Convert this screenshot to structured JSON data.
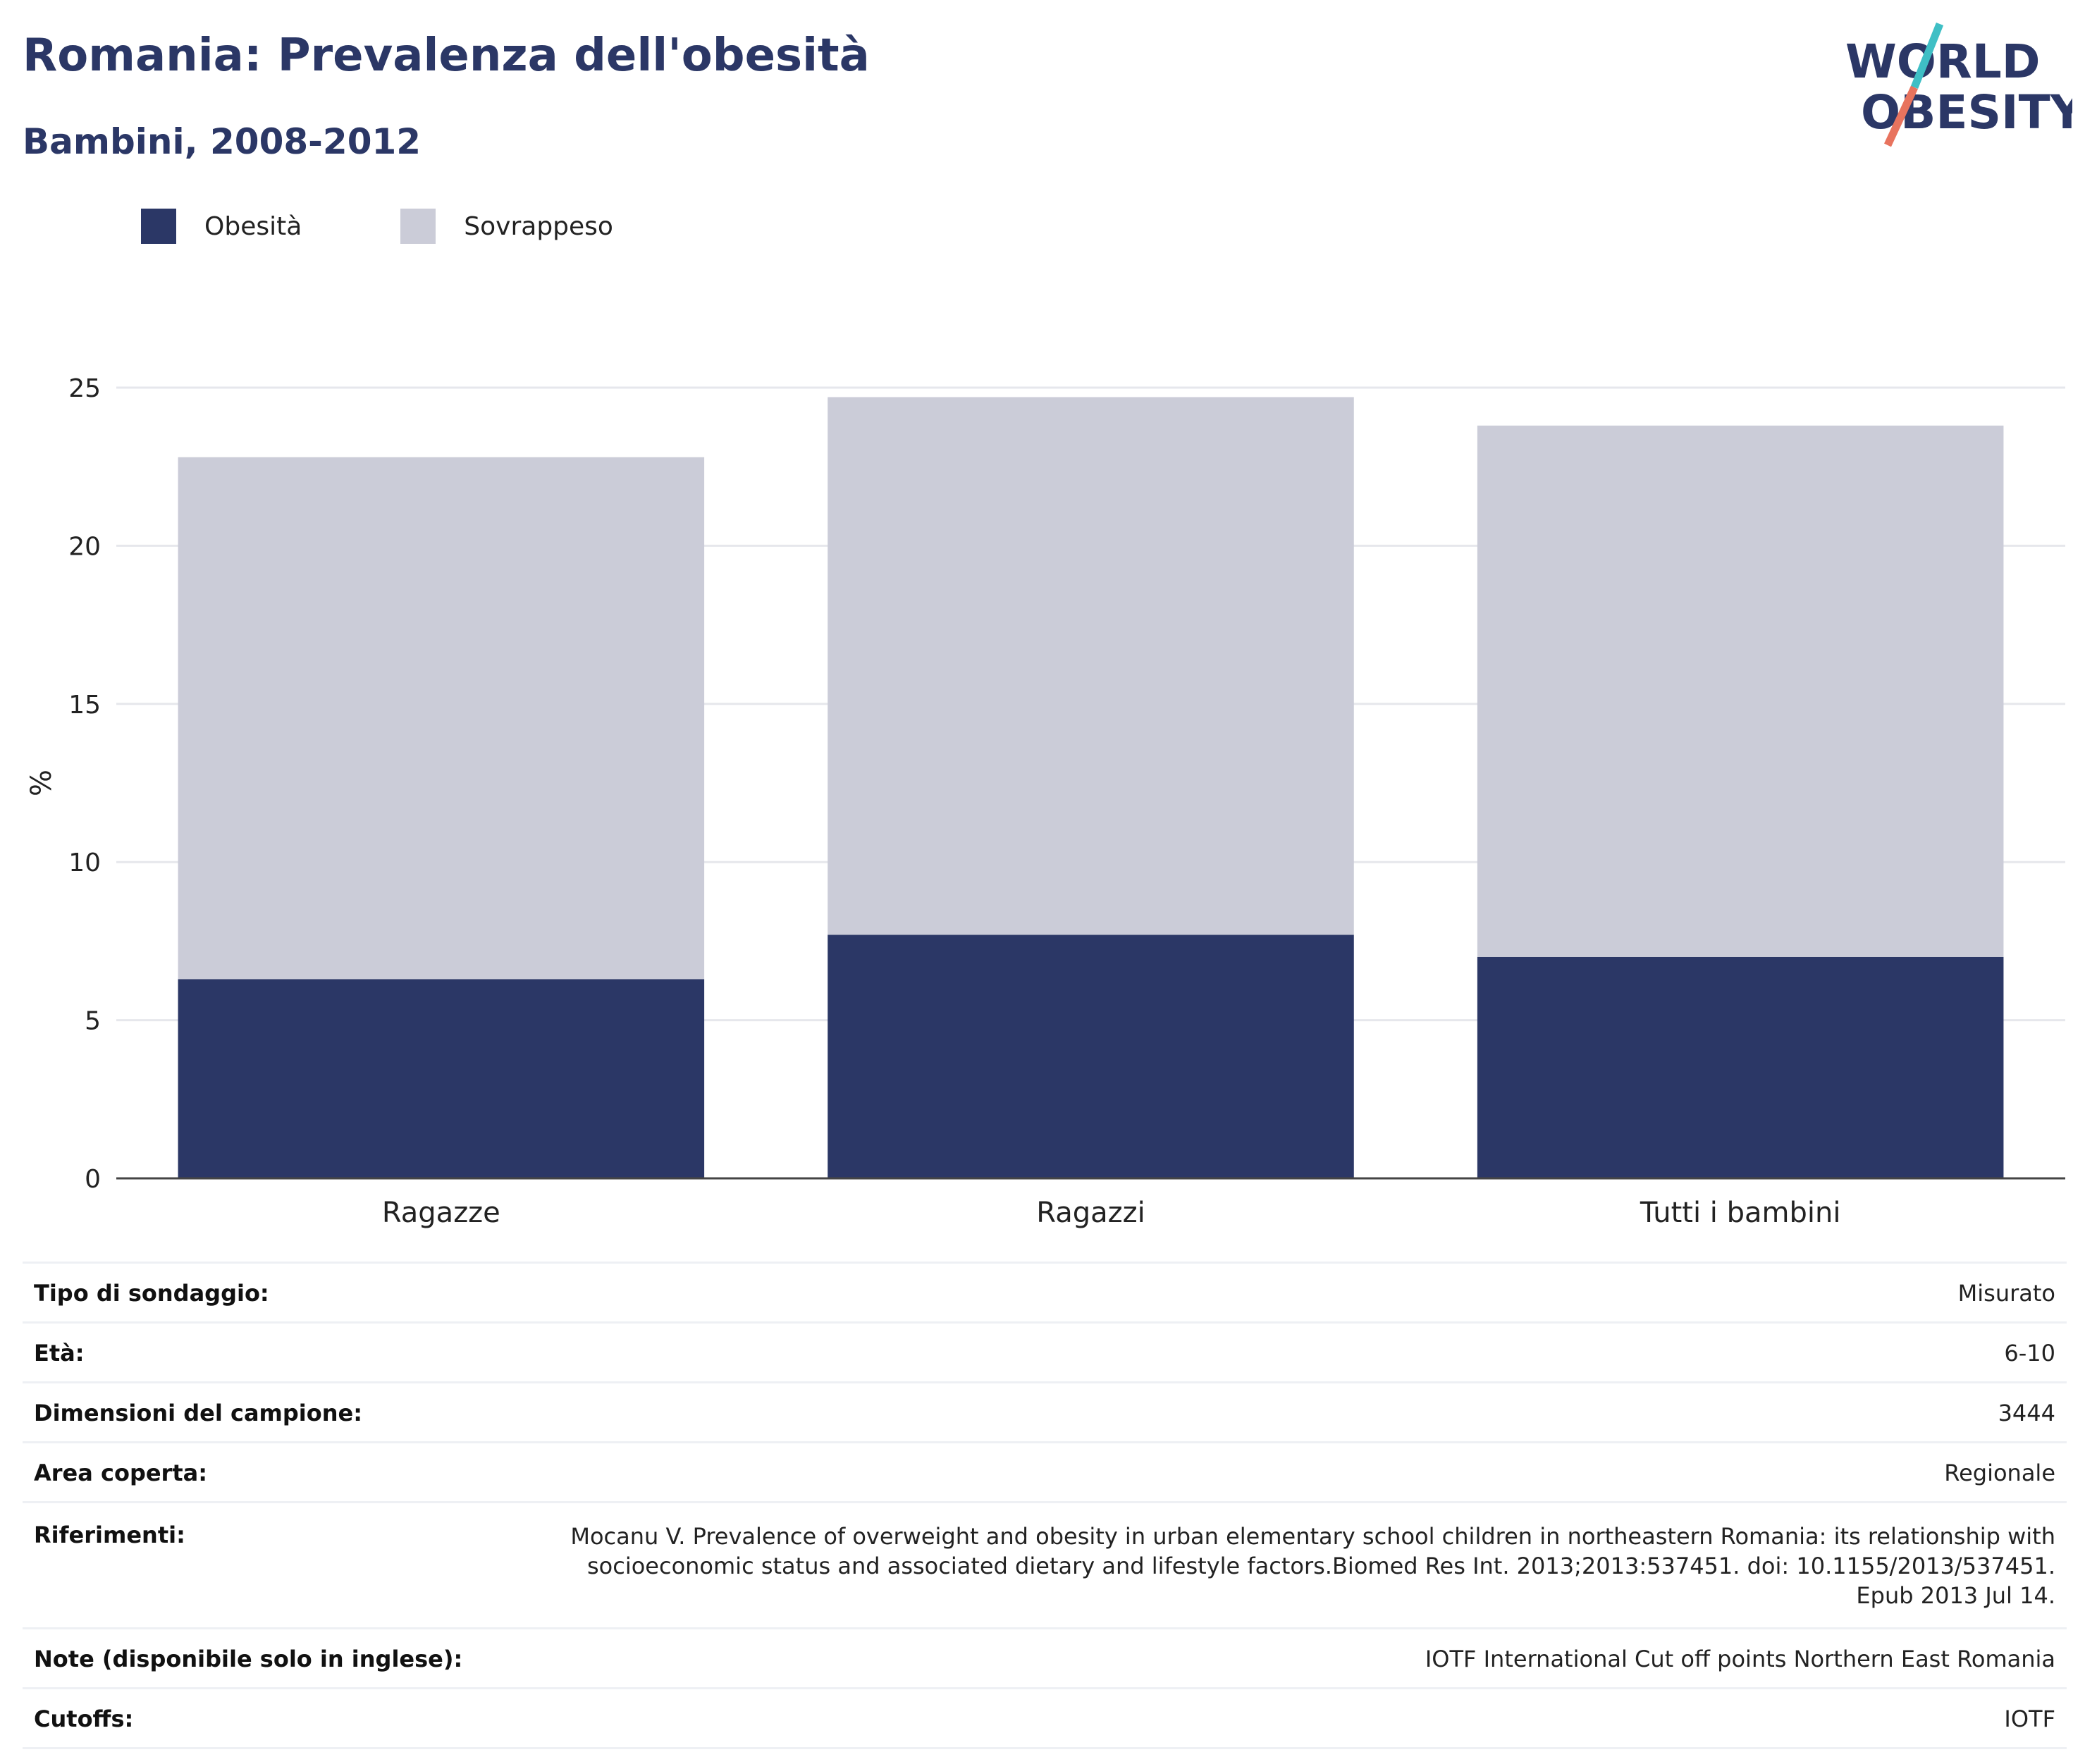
{
  "header": {
    "title": "Romania: Prevalenza dell'obesità",
    "subtitle": "Bambini, 2008-2012"
  },
  "logo": {
    "line1": "WORLD",
    "line2": "OBESITY",
    "colors": {
      "text": "#2b3766",
      "slash_top": "#3fbfc5",
      "slash_bottom": "#e8735e"
    }
  },
  "colors": {
    "obesity": "#2b3766",
    "overweight": "#cbccd8",
    "axis": "#444444",
    "grid": "#e6e7ec"
  },
  "chart_data": {
    "type": "bar",
    "stacked": true,
    "categories": [
      "Ragazze",
      "Ragazzi",
      "Tutti i bambini"
    ],
    "series": [
      {
        "name": "Obesità",
        "values": [
          6.3,
          7.7,
          7.0
        ]
      },
      {
        "name": "Sovrappeso",
        "values": [
          16.5,
          17.0,
          16.8
        ]
      }
    ],
    "ylabel": "%",
    "ylim": [
      0,
      25
    ],
    "yticks": [
      0,
      5,
      10,
      15,
      20,
      25
    ],
    "grid": true,
    "legend_position": "top-left"
  },
  "info": [
    {
      "label": "Tipo di sondaggio:",
      "value": "Misurato"
    },
    {
      "label": "Età:",
      "value": "6-10"
    },
    {
      "label": "Dimensioni del campione:",
      "value": "3444"
    },
    {
      "label": "Area coperta:",
      "value": "Regionale"
    },
    {
      "label": "Riferimenti:",
      "value": "Mocanu V. Prevalence of overweight and obesity in urban elementary school children in northeastern Romania: its relationship with socioeconomic status and associated dietary and lifestyle factors.Biomed Res Int. 2013;2013:537451. doi: 10.1155/2013/537451. Epub 2013 Jul 14."
    },
    {
      "label": "Note (disponibile solo in inglese):",
      "value": "IOTF International Cut off points Northern East Romania"
    },
    {
      "label": "Cutoffs:",
      "value": "IOTF"
    }
  ]
}
